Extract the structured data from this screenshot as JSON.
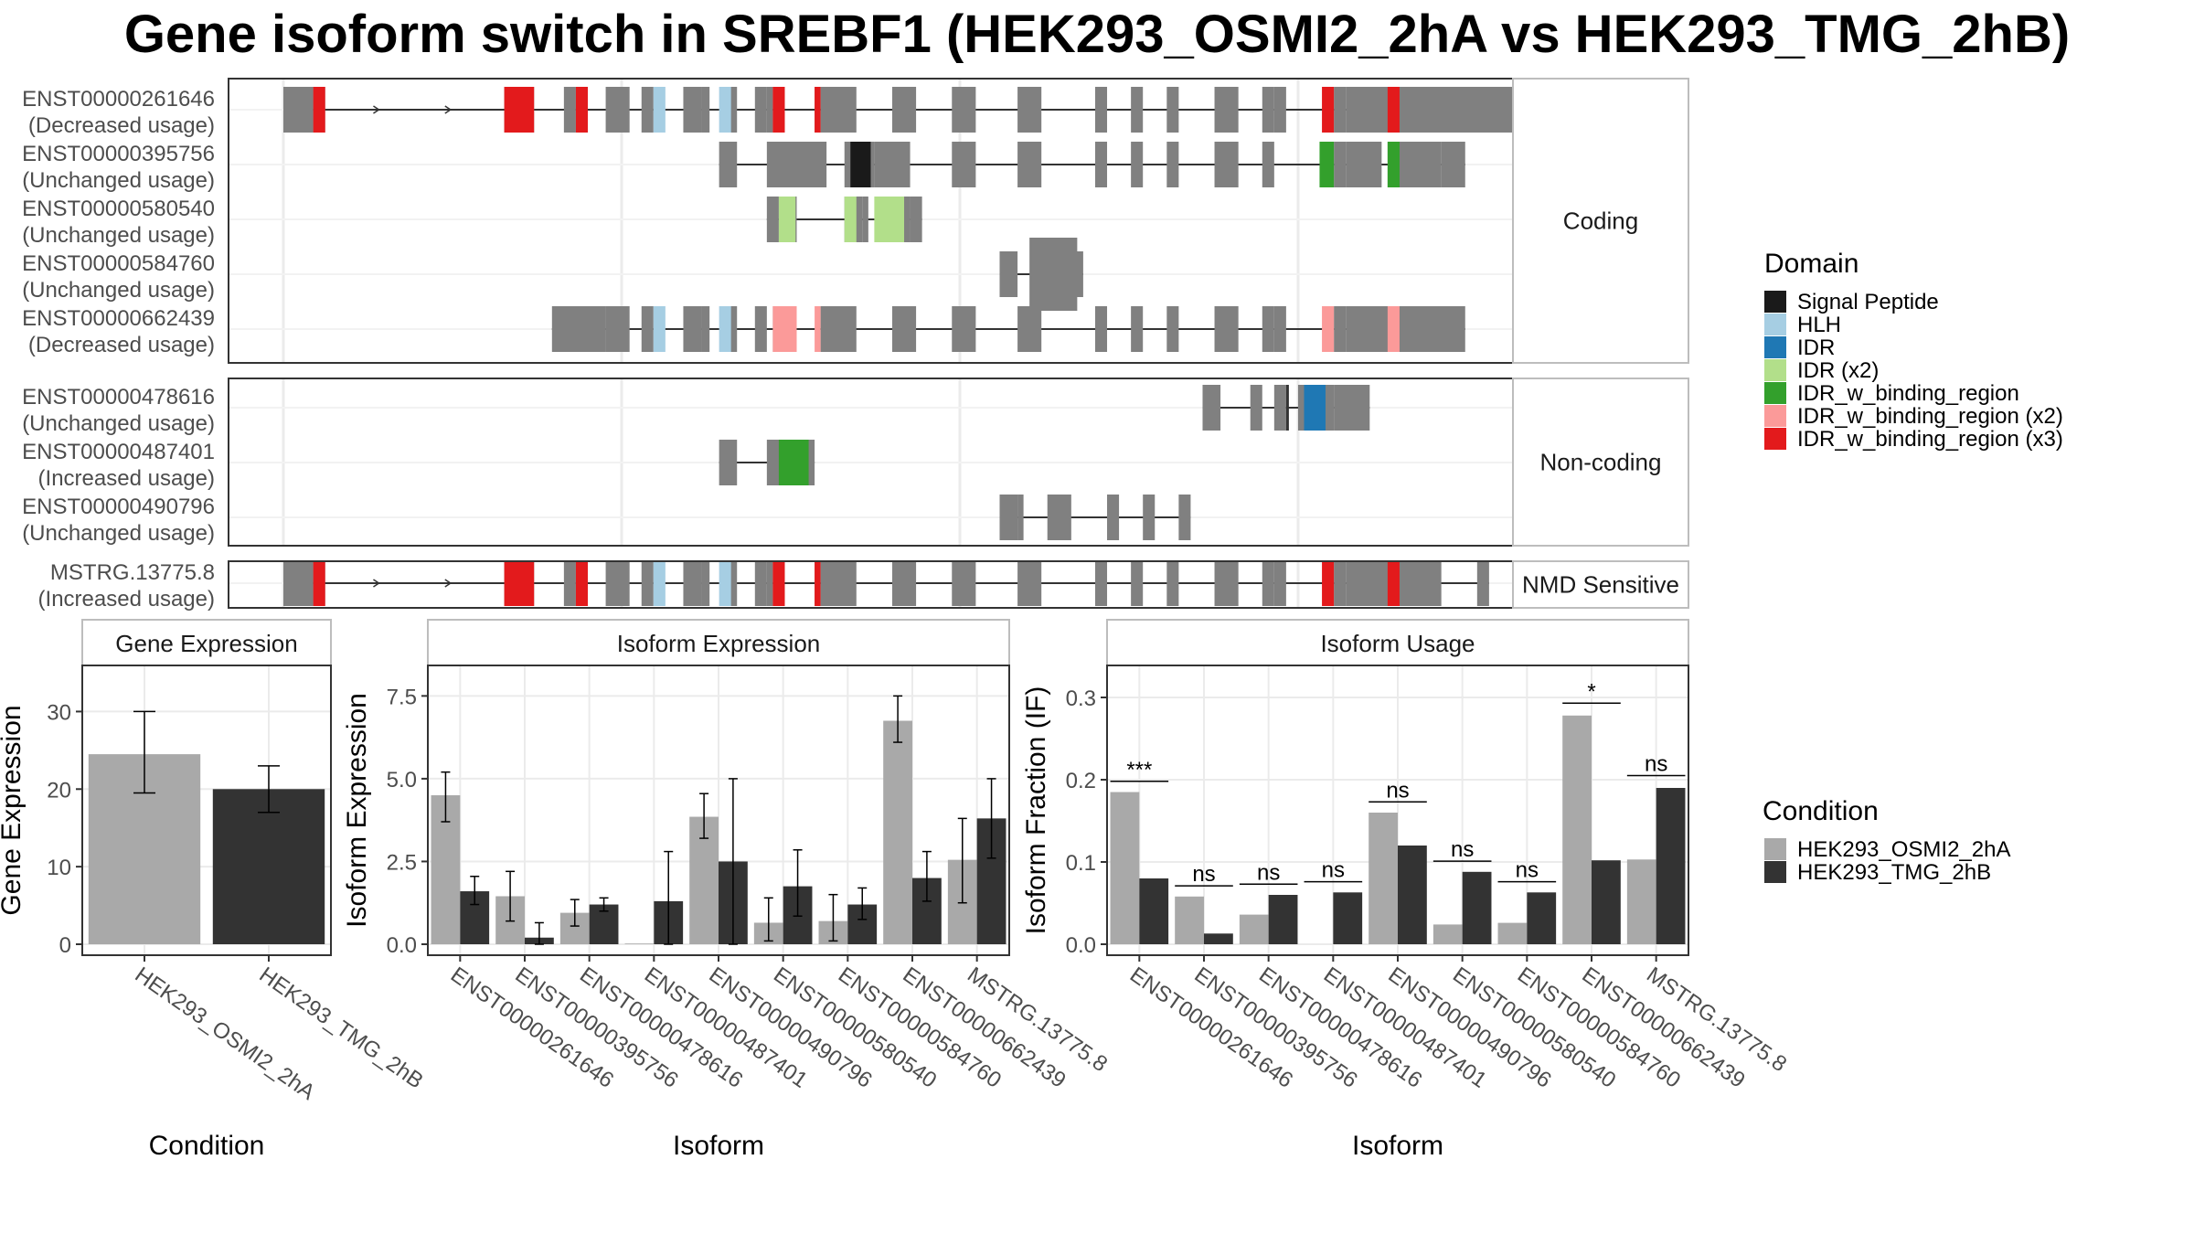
{
  "title": "Gene isoform switch in SREBF1 (HEK293_OSMI2_2hA vs HEK293_TMG_2hB)",
  "colors": {
    "domain": {
      "Signal Peptide": "#1a1a1a",
      "HLH": "#a6cee3",
      "IDR": "#1f78b4",
      "IDR (x2)": "#b2df8a",
      "IDR_w_binding_region": "#33a02c",
      "IDR_w_binding_region (x2)": "#fb9a99",
      "IDR_w_binding_region (x3)": "#e31a1c"
    },
    "exon": "#808080",
    "condition": {
      "HEK293_OSMI2_2hA": "#a9a9a9",
      "HEK293_TMG_2hB": "#333333"
    }
  },
  "structure": {
    "facets": [
      {
        "label": "Coding",
        "isoforms": [
          {
            "name": "ENST00000261646",
            "status": "(Decreased usage)",
            "exons": [
              [
                0,
                2.5
              ],
              [
                2.5,
                3.5
              ],
              [
                18.5,
                21
              ],
              [
                23.5,
                24.5
              ],
              [
                24.5,
                25.5
              ],
              [
                27,
                29
              ],
              [
                30,
                31
              ],
              [
                33.5,
                35
              ],
              [
                35,
                35.7
              ],
              [
                37,
                38
              ],
              [
                39.5,
                40.5
              ],
              [
                40.5,
                41
              ],
              [
                41,
                42
              ],
              [
                44.5,
                45
              ],
              [
                45,
                48
              ],
              [
                51,
                53
              ],
              [
                56,
                58
              ],
              [
                61.5,
                63.5
              ],
              [
                68,
                69
              ],
              [
                71,
                72
              ],
              [
                74,
                75
              ],
              [
                78,
                80
              ],
              [
                82,
                83
              ],
              [
                83,
                84
              ],
              [
                88,
                89
              ],
              [
                89,
                103
              ]
            ],
            "exonsThin": [],
            "domains": [
              [
                2.5,
                3.5,
                "IDR_w_binding_region (x3)"
              ],
              [
                18.5,
                21,
                "IDR_w_binding_region (x3)"
              ],
              [
                24.5,
                25.5,
                "IDR_w_binding_region (x3)"
              ],
              [
                31,
                32,
                "HLH"
              ],
              [
                36.5,
                37.5,
                "HLH"
              ],
              [
                41,
                42,
                "IDR_w_binding_region (x3)"
              ],
              [
                44.5,
                45,
                "IDR_w_binding_region (x3)"
              ],
              [
                87,
                88,
                "IDR_w_binding_region (x3)"
              ],
              [
                92.5,
                93.5,
                "IDR_w_binding_region (x3)"
              ]
            ],
            "arrows": [
              8,
              14,
              19
            ]
          },
          {
            "name": "ENST00000395756",
            "status": "(Unchanged usage)",
            "exons": [
              [
                36.5,
                38
              ],
              [
                40.5,
                45.5
              ],
              [
                47,
                48
              ],
              [
                48,
                49.5
              ],
              [
                49.5,
                52.5
              ],
              [
                56,
                58
              ],
              [
                61.5,
                63.5
              ],
              [
                68,
                69
              ],
              [
                71,
                72
              ],
              [
                74,
                75
              ],
              [
                78,
                80
              ],
              [
                82,
                83
              ],
              [
                88,
                89
              ],
              [
                89,
                92
              ],
              [
                92.5,
                97
              ],
              [
                97,
                99
              ]
            ],
            "exonsThin": [],
            "domains": [
              [
                47.5,
                49.2,
                "Signal Peptide"
              ],
              [
                86.8,
                88,
                "IDR_w_binding_region"
              ],
              [
                92.5,
                93.5,
                "IDR_w_binding_region"
              ]
            ],
            "arrows": []
          },
          {
            "name": "ENST00000580540",
            "status": "(Unchanged usage)",
            "exons": [
              [
                40.5,
                41.5
              ],
              [
                41.5,
                43
              ],
              [
                47,
                48.5
              ],
              [
                48.5,
                49
              ],
              [
                50,
                52.5
              ],
              [
                52.5,
                53.5
              ]
            ],
            "exonsThin": [],
            "domains": [
              [
                41.5,
                42.9,
                "IDR (x2)"
              ],
              [
                47,
                48,
                "IDR (x2)"
              ],
              [
                49.5,
                52,
                "IDR (x2)"
              ]
            ],
            "arrows": []
          }
        ]
      },
      {
        "label": "Non-coding",
        "isoforms": []
      },
      {
        "label": "NMD Sensitive",
        "isoforms": []
      }
    ]
  },
  "chart_data": [
    {
      "type": "bar",
      "title": "Gene Expression",
      "xlabel": "Condition",
      "ylabel": "Gene Expression",
      "categories": [
        "HEK293_OSMI2_2hA",
        "HEK293_TMG_2hB"
      ],
      "values": [
        24.5,
        20
      ],
      "errors": [
        [
          19.5,
          30
        ],
        [
          17,
          23
        ]
      ],
      "ylim": [
        0,
        35
      ],
      "yticks": [
        0,
        10,
        20,
        30
      ],
      "series": [
        {
          "name": "HEK293_OSMI2_2hA"
        },
        {
          "name": "HEK293_TMG_2hB"
        }
      ]
    },
    {
      "type": "bar",
      "title": "Isoform Expression",
      "xlabel": "Isoform",
      "ylabel": "Isoform Expression",
      "categories": [
        "ENST00000261646",
        "ENST00000395756",
        "ENST00000478616",
        "ENST00000487401",
        "ENST00000490796",
        "ENST00000580540",
        "ENST00000584760",
        "ENST00000662439",
        "MSTRG.13775.8"
      ],
      "series": [
        {
          "name": "HEK293_OSMI2_2hA",
          "values": [
            4.5,
            1.45,
            0.95,
            0.02,
            3.85,
            0.65,
            0.7,
            6.75,
            2.55
          ],
          "errors": [
            [
              3.7,
              5.2
            ],
            [
              0.7,
              2.2
            ],
            [
              0.55,
              1.35
            ],
            [
              0,
              0
            ],
            [
              3.2,
              4.55
            ],
            [
              0.1,
              1.4
            ],
            [
              0.1,
              1.5
            ],
            [
              6.1,
              7.5
            ],
            [
              1.25,
              3.8
            ]
          ]
        },
        {
          "name": "HEK293_TMG_2hB",
          "values": [
            1.6,
            0.2,
            1.2,
            1.3,
            2.5,
            1.75,
            1.2,
            2,
            3.8
          ],
          "errors": [
            [
              1.2,
              2.05
            ],
            [
              0,
              0.65
            ],
            [
              1.0,
              1.4
            ],
            [
              0,
              2.8
            ],
            [
              0,
              5.0
            ],
            [
              0.85,
              2.85
            ],
            [
              0.75,
              1.7
            ],
            [
              1.3,
              2.8
            ],
            [
              2.6,
              5.0
            ]
          ]
        }
      ],
      "ylim": [
        0,
        8.2
      ],
      "yticks": [
        0,
        2.5,
        5.0,
        7.5
      ]
    },
    {
      "type": "bar",
      "title": "Isoform Usage",
      "xlabel": "Isoform",
      "ylabel": "Isoform Fraction (IF)",
      "categories": [
        "ENST00000261646",
        "ENST00000395756",
        "ENST00000478616",
        "ENST00000487401",
        "ENST00000490796",
        "ENST00000580540",
        "ENST00000584760",
        "ENST00000662439",
        "MSTRG.13775.8"
      ],
      "series": [
        {
          "name": "HEK293_OSMI2_2hA",
          "values": [
            0.185,
            0.058,
            0.036,
            0,
            0.16,
            0.024,
            0.026,
            0.278,
            0.103
          ]
        },
        {
          "name": "HEK293_TMG_2hB",
          "values": [
            0.08,
            0.013,
            0.06,
            0.063,
            0.12,
            0.088,
            0.063,
            0.102,
            0.19
          ]
        }
      ],
      "significance": [
        "***",
        "ns",
        "ns",
        "ns",
        "ns",
        "ns",
        "ns",
        "*",
        "ns"
      ],
      "sig_y": [
        0.198,
        0.071,
        0.073,
        0.076,
        0.173,
        0.101,
        0.076,
        0.293,
        0.205
      ],
      "ylim": [
        0,
        0.33
      ],
      "yticks": [
        0.0,
        0.1,
        0.2,
        0.3
      ]
    }
  ],
  "legends": {
    "domain": {
      "title": "Domain",
      "items": [
        "Signal Peptide",
        "HLH",
        "IDR",
        "IDR (x2)",
        "IDR_w_binding_region",
        "IDR_w_binding_region (x2)",
        "IDR_w_binding_region (x3)"
      ]
    },
    "condition": {
      "title": "Condition",
      "items": [
        "HEK293_OSMI2_2hA",
        "HEK293_TMG_2hB"
      ]
    }
  }
}
